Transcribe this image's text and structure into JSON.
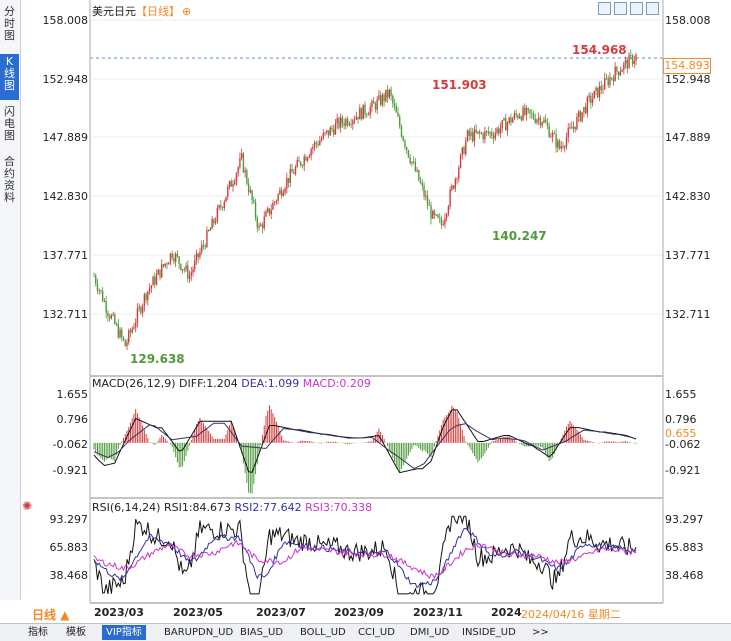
{
  "side_tabs": [
    "分时图",
    "K线图",
    "闪电图",
    "合约资料"
  ],
  "main": {
    "title": "美元日元",
    "period": "【日线】",
    "add_icon": "plus-circle-icon",
    "tool_icons": [
      "move-icon",
      "zoom-icon",
      "grid-icon",
      "fullscreen-icon"
    ],
    "y_labels": [
      "158.008",
      "152.948",
      "147.889",
      "142.830",
      "137.771",
      "132.711"
    ],
    "last_price": "154.893",
    "high_label": "154.968",
    "peak1_label": "151.903",
    "low_label": "140.247",
    "min_label": "129.638"
  },
  "macd": {
    "title": "MACD(26,12,9)",
    "diff": "DIFF:1.204",
    "dea": "DEA:1.099",
    "macd": "MACD:0.209",
    "y_labels": [
      "1.655",
      "0.796",
      "-0.062",
      "-0.921"
    ],
    "current": "0.655"
  },
  "rsi": {
    "title": "RSI(6,14,24)",
    "rsi1": "RSI1:84.673",
    "rsi2": "RSI2:77.642",
    "rsi3": "RSI3:70.338",
    "y_labels": [
      "93.297",
      "65.883",
      "38.468"
    ],
    "settings_icon": "gear-icon"
  },
  "date_bar": {
    "period_button": "日线",
    "dates": [
      "2023/03",
      "2023/05",
      "2023/07",
      "2023/09",
      "2023/11",
      "2024"
    ],
    "current_date": "2024/04/16 星期二"
  },
  "bottom_tabs": [
    "指标",
    "模板",
    "VIP指标",
    "BARUPDN_UD",
    "BIAS_UD",
    "BOLL_UD",
    "CCI_UD",
    "DMI_UD",
    "INSIDE_UD",
    ">>"
  ],
  "colors": {
    "up": "#d23c3c",
    "down": "#4e9a3a",
    "accent": "#2a6cd0",
    "label_orange": "#f08a24",
    "diff_line": "#111111",
    "dea_line": "#333366",
    "rsi3": "#cc33cc"
  }
}
